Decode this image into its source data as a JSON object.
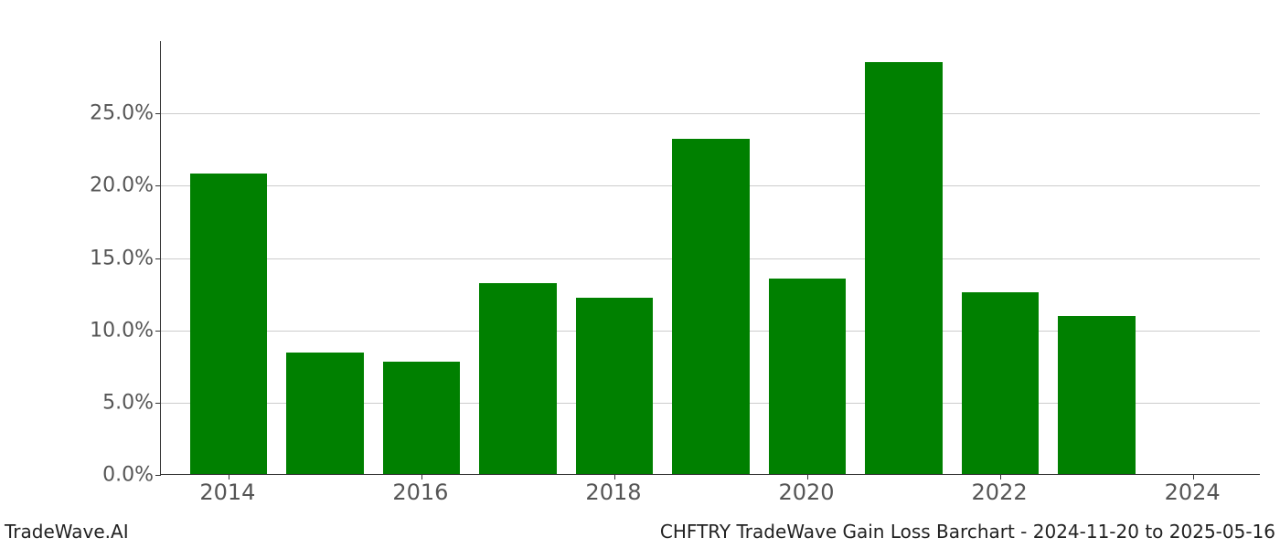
{
  "chart": {
    "type": "bar",
    "bar_color": "#008000",
    "background_color": "#ffffff",
    "grid_color": "#cccccc",
    "axis_color": "#333333",
    "tick_label_color": "#555555",
    "years": [
      2014,
      2015,
      2016,
      2017,
      2018,
      2019,
      2020,
      2021,
      2022,
      2023,
      2024
    ],
    "values_pct": [
      20.8,
      8.4,
      7.8,
      13.2,
      12.2,
      23.2,
      13.5,
      28.5,
      12.6,
      10.9,
      0.0
    ],
    "x_ticks": [
      2014,
      2016,
      2018,
      2020,
      2022,
      2024
    ],
    "y_ticks": [
      0.0,
      5.0,
      10.0,
      15.0,
      20.0,
      25.0
    ],
    "y_tick_labels": [
      "0.0%",
      "5.0%",
      "10.0%",
      "15.0%",
      "20.0%",
      "25.0%"
    ],
    "ylim": [
      0.0,
      30.0
    ],
    "xlim": [
      2013.3,
      2024.7
    ],
    "bar_width_years": 0.8,
    "tick_fontsize": 22,
    "xtick_fontsize": 24
  },
  "footer": {
    "left": "TradeWave.AI",
    "right": "CHFTRY TradeWave Gain Loss Barchart - 2024-11-20 to 2025-05-16",
    "fontsize": 20,
    "color": "#222222"
  }
}
